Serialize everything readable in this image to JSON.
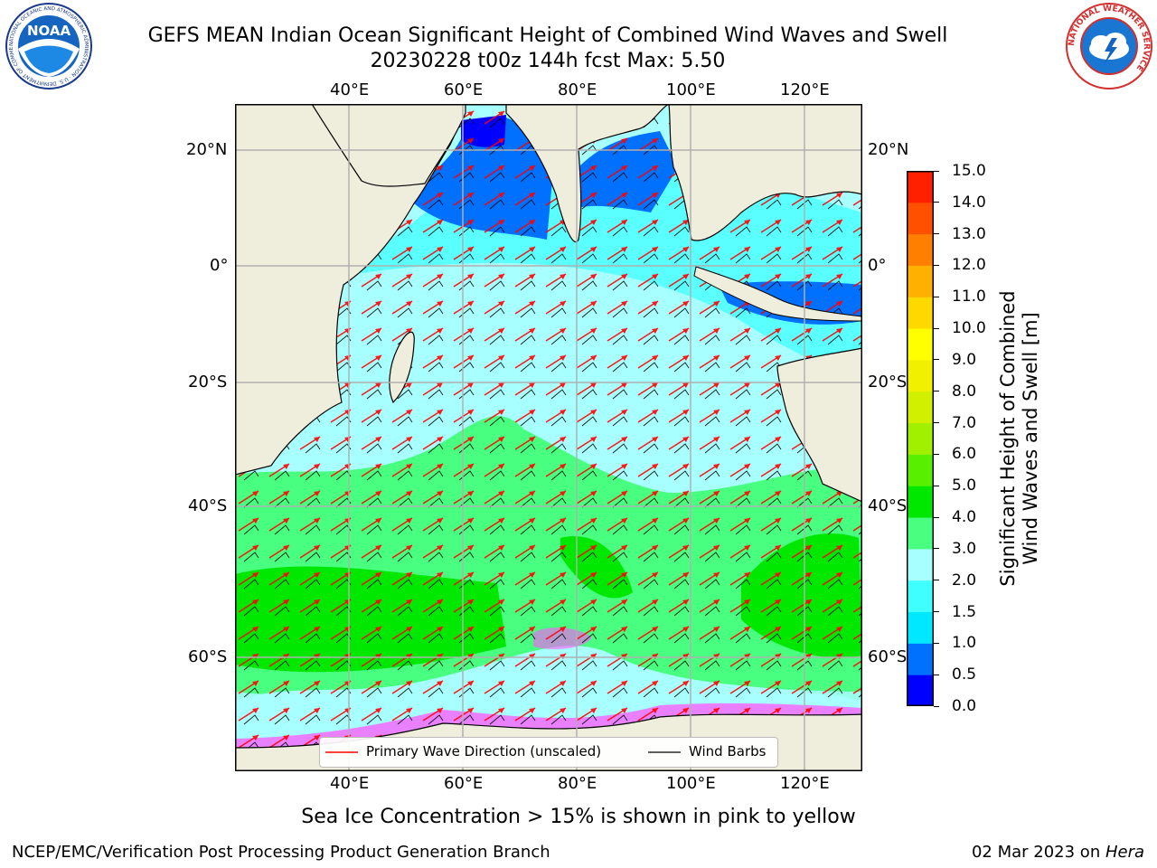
{
  "title": {
    "line1": "GEFS MEAN Indian Ocean Significant Height of Combined Wind Waves and Swell",
    "line2": "20230228 t00z 144h fcst   Max: 5.50"
  },
  "axes": {
    "lon_ticks": [
      "40°E",
      "60°E",
      "80°E",
      "100°E",
      "120°E"
    ],
    "lat_ticks_left": [
      "20°N",
      "0°",
      "20°S",
      "40°S",
      "60°S"
    ],
    "lat_ticks_right": [
      "20°N",
      "0°",
      "20°S",
      "40°S",
      "60°S"
    ]
  },
  "colorbar": {
    "label_line1": "Significant Height of Combined",
    "label_line2": "Wind Waves and Swell [m]",
    "ticks": [
      "0.0",
      "0.5",
      "1.0",
      "1.5",
      "2.0",
      "3.0",
      "4.0",
      "5.0",
      "6.0",
      "7.0",
      "8.0",
      "9.0",
      "10.0",
      "11.0",
      "12.0",
      "13.0",
      "14.0",
      "15.0"
    ],
    "colors": [
      "#0000ff",
      "#0070ff",
      "#00e8ff",
      "#40ffff",
      "#a8ffff",
      "#48ff80",
      "#00e800",
      "#58f000",
      "#a0f000",
      "#d0f000",
      "#f0f000",
      "#ffff00",
      "#ffd800",
      "#ffb000",
      "#ff8000",
      "#ff5000",
      "#ff2000"
    ]
  },
  "legend": {
    "wave_direction": "Primary Wave Direction (unscaled)",
    "wind_barbs": "Wind Barbs",
    "wave_color": "#ff0000",
    "barb_color": "#000000"
  },
  "note": "Sea Ice Concentration > 15% is shown in pink to yellow",
  "footer_left": "NCEP/EMC/Verification Post Processing Product Generation Branch",
  "footer_right_date": "02 Mar 2023 on ",
  "footer_right_host": "Hera",
  "logos": {
    "noaa_text": "NOAA",
    "noaa_ring": "NATIONAL OCEANIC AND ATMOSPHERIC ADMINISTRATION · U.S. DEPARTMENT OF COMMERCE",
    "nws_ring": "NATIONAL WEATHER SERVICE"
  },
  "colors": {
    "land": "#efeddc",
    "grid": "#b0b0b0",
    "ocean_low": "#a8ffff",
    "sea_ice": "#ff55ff"
  }
}
